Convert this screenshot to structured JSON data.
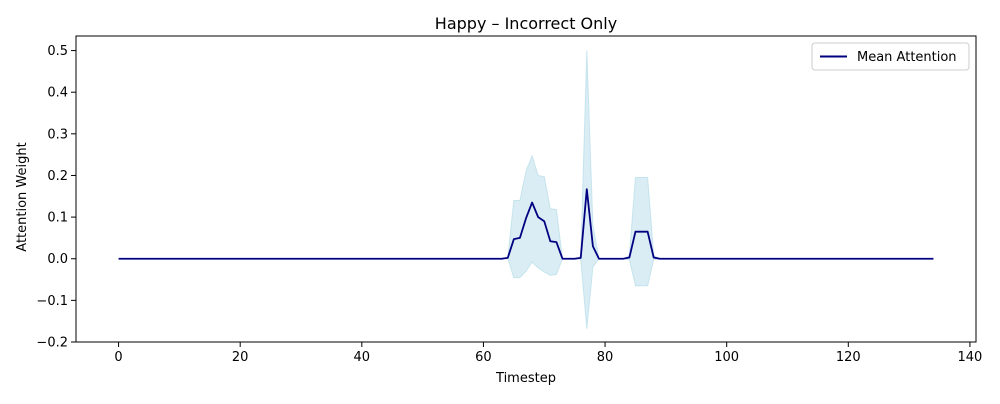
{
  "chart_data": {
    "type": "line",
    "title": "Happy – Incorrect Only",
    "xlabel": "Timestep",
    "ylabel": "Attention Weight",
    "xlim": [
      -7,
      141
    ],
    "ylim": [
      -0.2,
      0.535
    ],
    "xticks": [
      0,
      20,
      40,
      60,
      80,
      100,
      120,
      140
    ],
    "yticks": [
      -0.2,
      -0.1,
      0.0,
      0.1,
      0.2,
      0.3,
      0.4,
      0.5
    ],
    "xtick_labels": [
      "0",
      "20",
      "40",
      "60",
      "80",
      "100",
      "120",
      "140"
    ],
    "ytick_labels": [
      "−0.2",
      "−0.1",
      "0.0",
      "0.1",
      "0.2",
      "0.3",
      "0.4",
      "0.5"
    ],
    "grid": false,
    "legend_position": "top-right",
    "line_color": "#000080",
    "band_color": "#add8e6",
    "series": [
      {
        "name": "Mean Attention",
        "x": [
          0,
          63,
          64,
          65,
          66,
          67,
          68,
          69,
          70,
          71,
          72,
          73,
          74,
          75,
          76,
          77,
          78,
          79,
          80,
          83,
          84,
          85,
          86,
          87,
          88,
          89,
          134
        ],
        "y": [
          0,
          0,
          0.002,
          0.047,
          0.05,
          0.097,
          0.135,
          0.1,
          0.09,
          0.042,
          0.04,
          0.0,
          0.0,
          0.0,
          0.002,
          0.167,
          0.03,
          0.0,
          0.0,
          0.0,
          0.003,
          0.065,
          0.065,
          0.065,
          0.003,
          0.0,
          0.0
        ]
      }
    ],
    "band": {
      "x": [
        0,
        63,
        64,
        65,
        66,
        67,
        68,
        69,
        70,
        71,
        72,
        73,
        74,
        75,
        76,
        77,
        78,
        79,
        80,
        83,
        84,
        85,
        86,
        87,
        88,
        89,
        134
      ],
      "upper": [
        0,
        0,
        0.003,
        0.14,
        0.14,
        0.21,
        0.247,
        0.2,
        0.197,
        0.12,
        0.118,
        0.0,
        0.0,
        0.0,
        0.005,
        0.5,
        0.08,
        0.0,
        0.0,
        0.0,
        0.008,
        0.195,
        0.195,
        0.195,
        0.008,
        0.0,
        0.0
      ],
      "lower": [
        0,
        0,
        0.001,
        -0.046,
        -0.045,
        -0.03,
        -0.008,
        -0.022,
        -0.032,
        -0.04,
        -0.038,
        0.0,
        0.0,
        0.0,
        -0.001,
        -0.168,
        -0.02,
        0.0,
        0.0,
        0.0,
        -0.002,
        -0.065,
        -0.065,
        -0.065,
        -0.002,
        0.0,
        0.0
      ]
    }
  }
}
